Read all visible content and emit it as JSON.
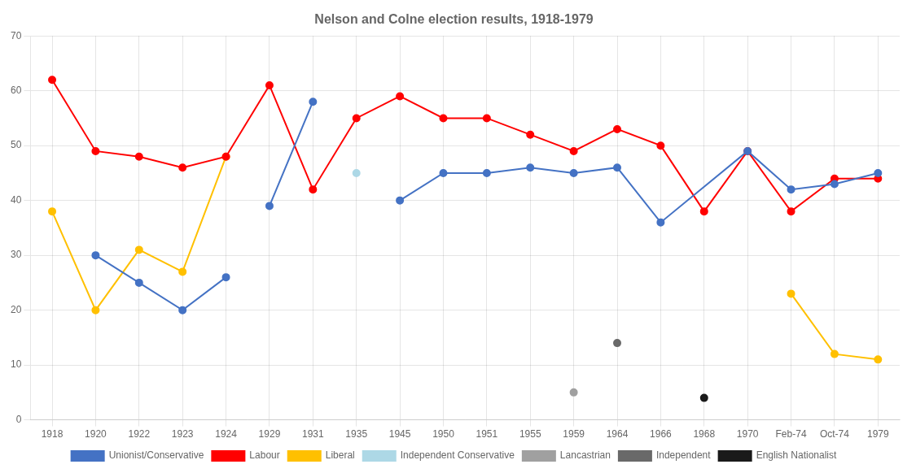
{
  "chart_data": {
    "type": "line",
    "title": "Nelson and Colne election results, 1918-1979",
    "categories": [
      "1918",
      "1920",
      "1922",
      "1923",
      "1924",
      "1929",
      "1931",
      "1935",
      "1945",
      "1950",
      "1951",
      "1955",
      "1959",
      "1964",
      "1966",
      "1968",
      "1970",
      "Feb-74",
      "Oct-74",
      "1979"
    ],
    "series": [
      {
        "name": "Unionist/Conservative",
        "color": "#4472C4",
        "values": [
          null,
          30,
          25,
          20,
          26,
          null,
          null,
          null,
          null,
          null,
          null,
          null,
          null,
          null,
          null,
          null,
          null,
          null,
          null,
          null
        ]
      },
      {
        "name": "Unionist/Conservative",
        "color": "#4472C4",
        "values": [
          null,
          null,
          null,
          null,
          null,
          39,
          58,
          null,
          null,
          null,
          null,
          null,
          null,
          null,
          null,
          null,
          null,
          null,
          null,
          null
        ]
      },
      {
        "name": "Unionist/Conservative",
        "color": "#4472C4",
        "values": [
          null,
          null,
          null,
          null,
          null,
          null,
          null,
          null,
          40,
          45,
          45,
          46,
          45,
          46,
          36,
          null,
          49,
          42,
          43,
          45
        ]
      },
      {
        "name": "Labour",
        "color": "#FF0000",
        "values": [
          62,
          49,
          48,
          46,
          48,
          61,
          42,
          55,
          59,
          55,
          55,
          52,
          49,
          53,
          50,
          38,
          49,
          38,
          44,
          44
        ]
      },
      {
        "name": "Liberal",
        "color": "#FFC000",
        "values": [
          38,
          20,
          31,
          27,
          48,
          null,
          null,
          null,
          null,
          null,
          null,
          null,
          null,
          null,
          null,
          null,
          null,
          null,
          null,
          null
        ]
      },
      {
        "name": "Liberal",
        "color": "#FFC000",
        "values": [
          null,
          null,
          null,
          null,
          null,
          null,
          null,
          null,
          null,
          null,
          null,
          null,
          null,
          null,
          null,
          null,
          null,
          23,
          12,
          11
        ]
      },
      {
        "name": "Independent Conservative",
        "color": "#ADD8E6",
        "values": [
          null,
          null,
          null,
          null,
          null,
          null,
          null,
          45,
          null,
          null,
          null,
          null,
          null,
          null,
          null,
          null,
          null,
          null,
          null,
          null
        ]
      },
      {
        "name": "Lancastrian",
        "color": "#A0A0A0",
        "values": [
          null,
          null,
          null,
          null,
          null,
          null,
          null,
          null,
          null,
          null,
          null,
          null,
          5,
          null,
          null,
          null,
          null,
          null,
          null,
          null
        ]
      },
      {
        "name": "Independent",
        "color": "#696969",
        "values": [
          null,
          null,
          null,
          null,
          null,
          null,
          null,
          null,
          null,
          null,
          null,
          null,
          null,
          14,
          null,
          null,
          null,
          null,
          null,
          null
        ]
      },
      {
        "name": "English Nationalist",
        "color": "#1a1a1a",
        "values": [
          null,
          null,
          null,
          null,
          null,
          null,
          null,
          null,
          null,
          null,
          null,
          null,
          null,
          null,
          null,
          4,
          null,
          null,
          null,
          null
        ]
      }
    ],
    "ylim": [
      0,
      70
    ],
    "yticks": [
      0,
      10,
      20,
      30,
      40,
      50,
      60,
      70
    ],
    "grid": true,
    "legend": "bottom",
    "marker": "circle"
  }
}
